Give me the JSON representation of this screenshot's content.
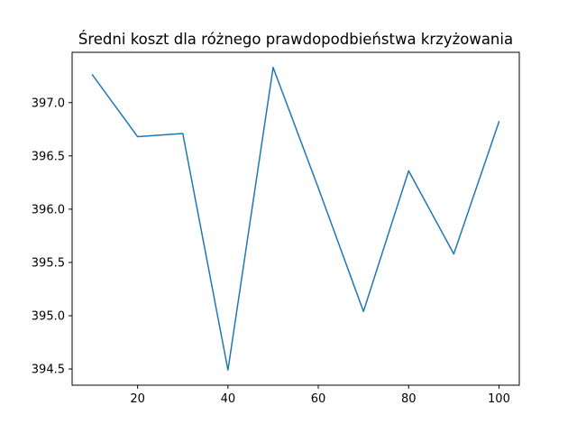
{
  "chart_data": {
    "type": "line",
    "title": "Średni koszt dla różnego prawdopodbieństwa krzyżowania",
    "xlabel": "",
    "ylabel": "",
    "x": [
      10,
      20,
      30,
      40,
      50,
      60,
      70,
      80,
      90,
      100
    ],
    "series": [
      {
        "values": [
          397.26,
          396.68,
          396.71,
          394.49,
          397.33,
          396.2,
          395.04,
          396.36,
          395.58,
          396.82
        ],
        "color": "#1f77b4"
      }
    ],
    "xlim": [
      5.5,
      104.5
    ],
    "ylim": [
      394.348,
      397.472
    ],
    "xticks": [
      20,
      40,
      60,
      80,
      100
    ],
    "xtick_labels": [
      "20",
      "40",
      "60",
      "80",
      "100"
    ],
    "yticks": [
      394.5,
      395.0,
      395.5,
      396.0,
      396.5,
      397.0
    ],
    "ytick_labels": [
      "394.5",
      "395.0",
      "395.5",
      "396.0",
      "396.5",
      "397.0"
    ],
    "grid": false,
    "legend": "none"
  }
}
